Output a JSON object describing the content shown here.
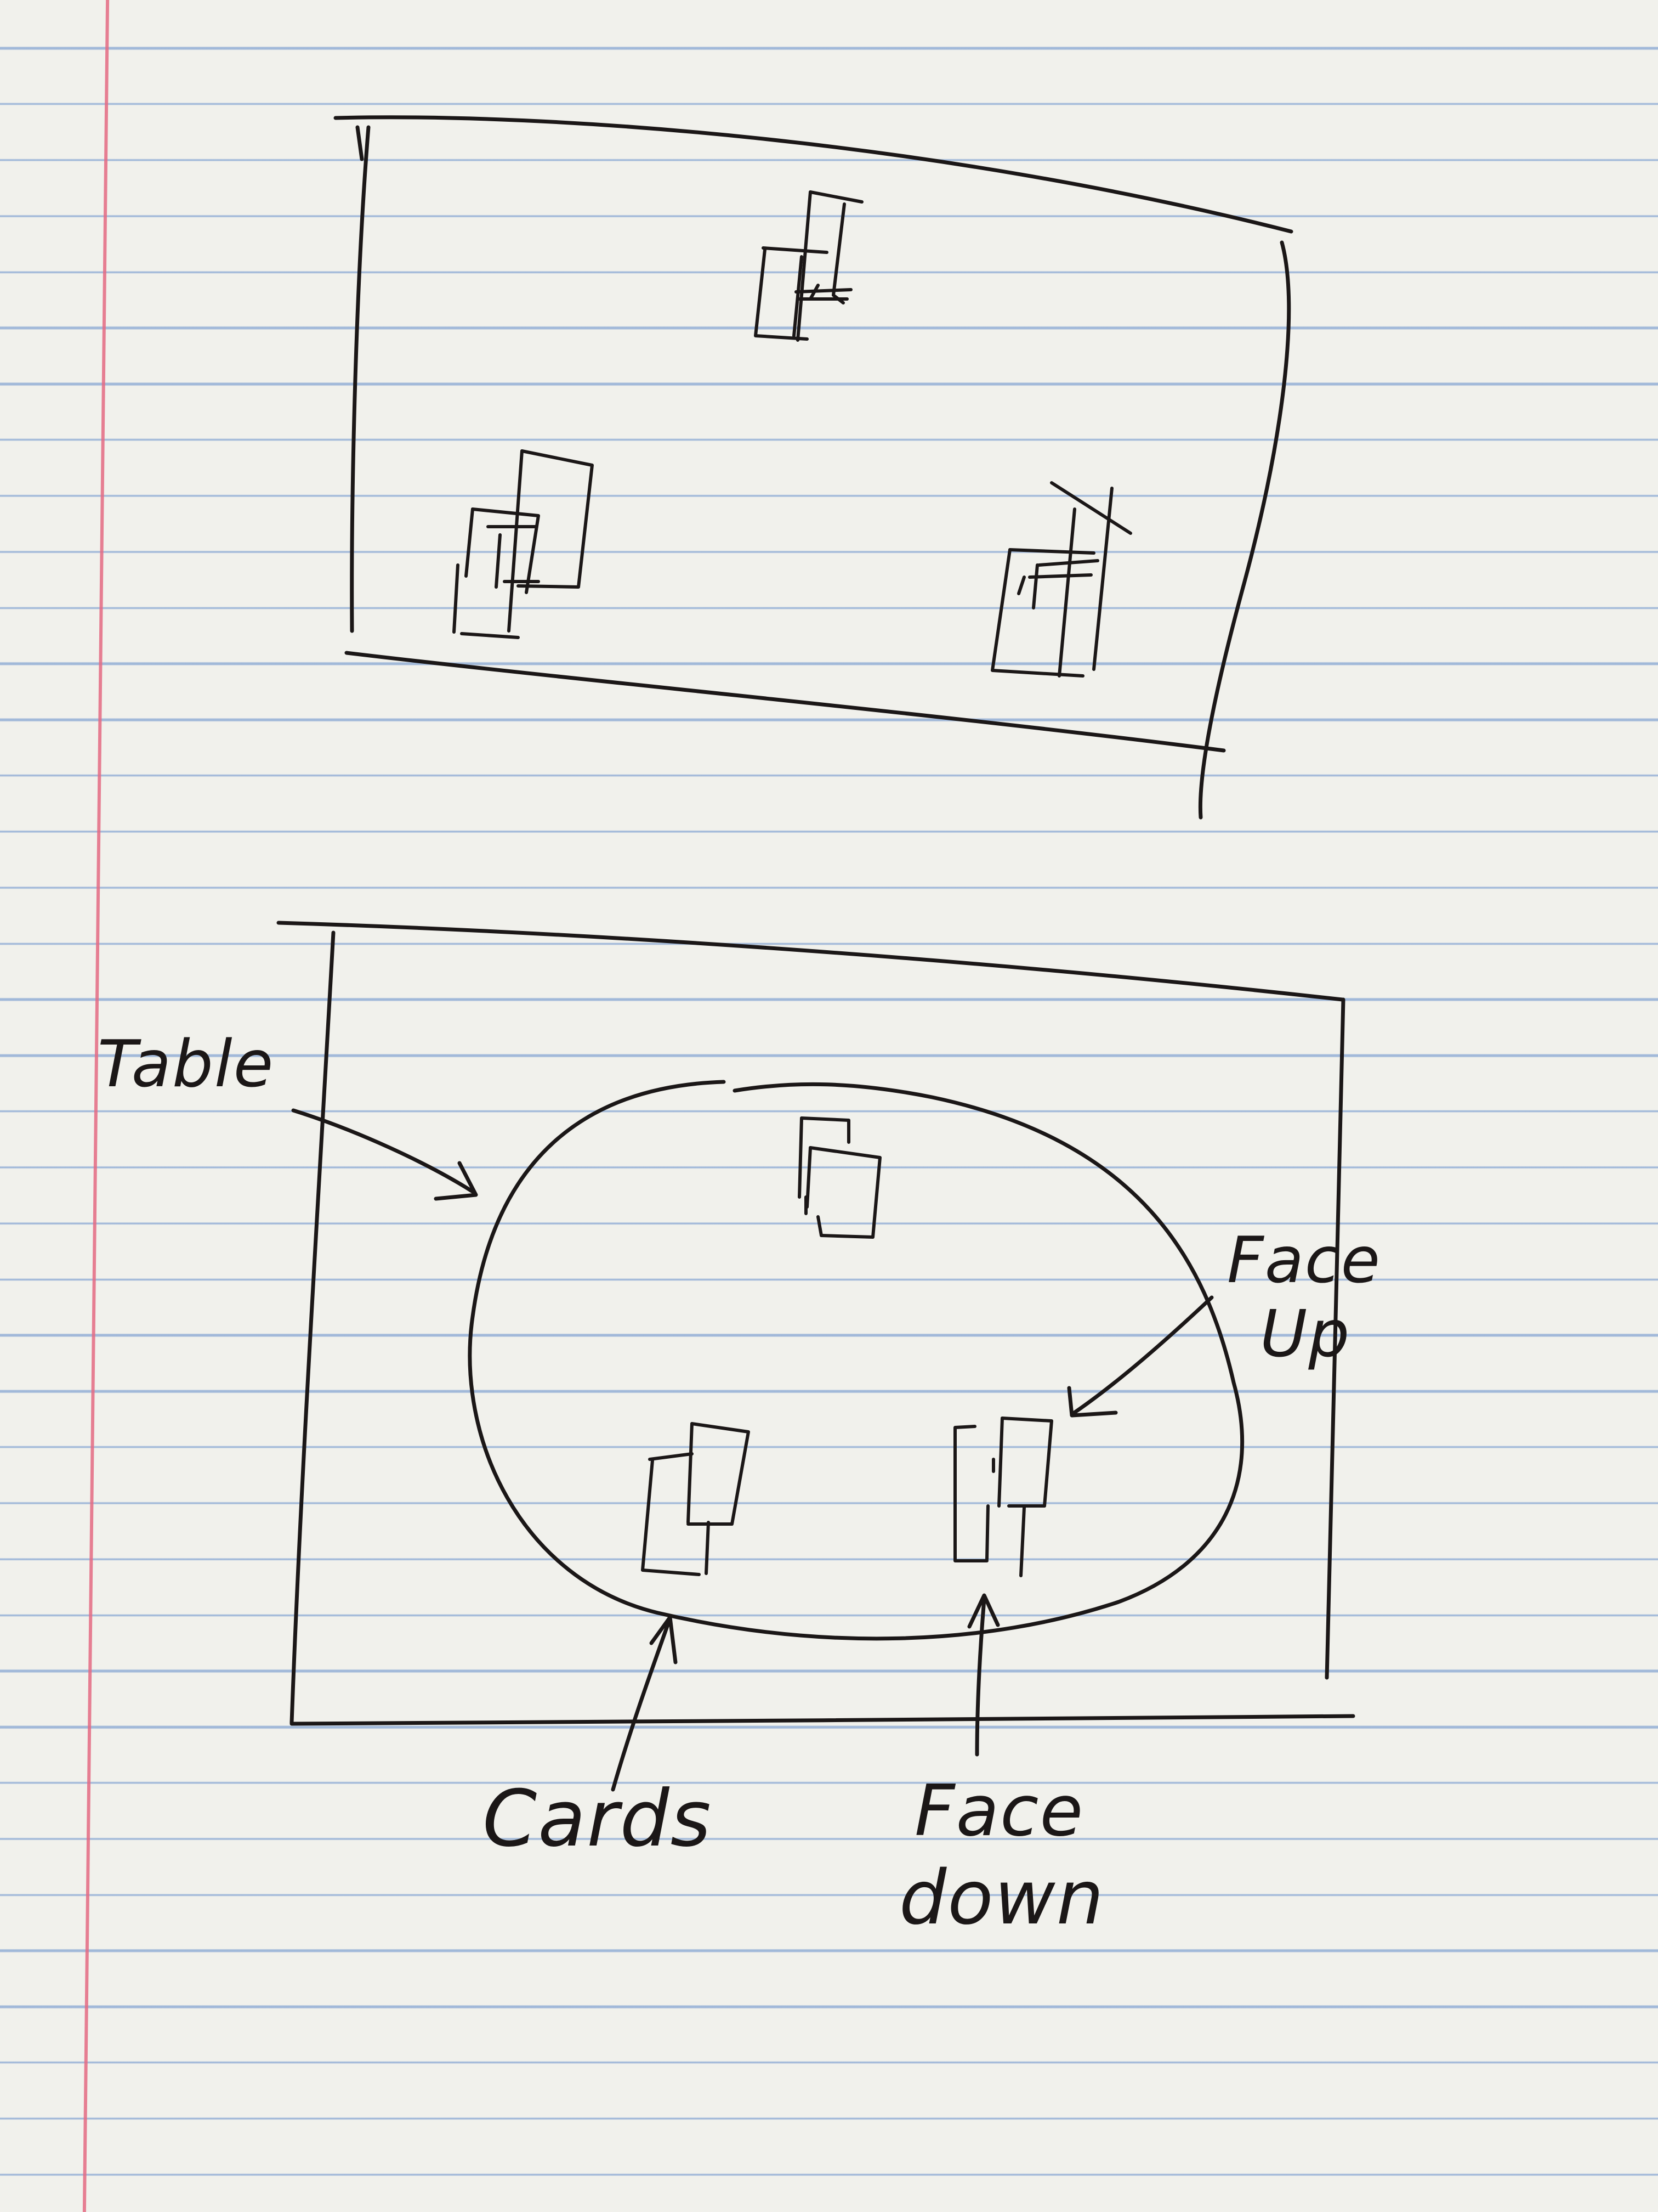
{
  "annotations": {
    "table": "Table",
    "face_up": [
      "Face",
      "Up"
    ],
    "cards": "Cards",
    "face_down": [
      "Face",
      "down"
    ]
  },
  "colors": {
    "paper": "#f1f1ec",
    "rule_lines": "#5f8ac9",
    "margin_line": "#e46a83",
    "ink": "#1b1717"
  }
}
